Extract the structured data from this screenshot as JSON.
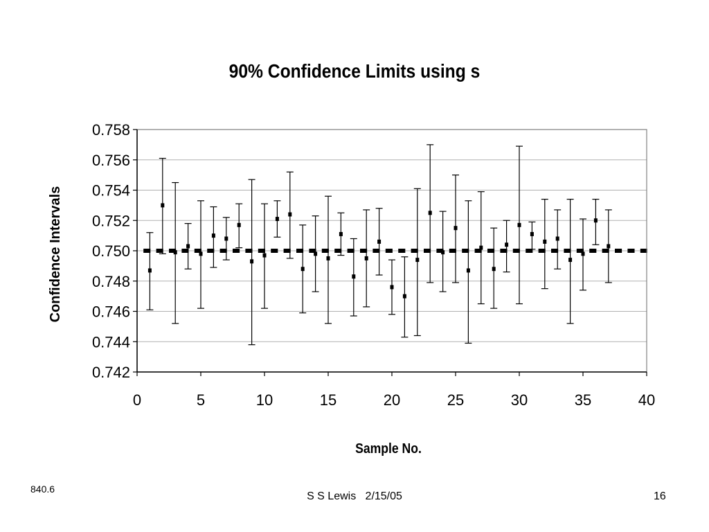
{
  "chart_data": {
    "type": "scatter",
    "title": "90% Confidence Limits using s",
    "xlabel": "Sample No.",
    "ylabel": "Confidence Intervals",
    "xlim": [
      0,
      40
    ],
    "ylim": [
      0.742,
      0.758
    ],
    "x_ticks": [
      0,
      5,
      10,
      15,
      20,
      25,
      30,
      35,
      40
    ],
    "y_ticks": [
      0.742,
      0.744,
      0.746,
      0.748,
      0.75,
      0.752,
      0.754,
      0.756,
      0.758
    ],
    "y_tick_labels": [
      "0.742",
      "0.744",
      "0.746",
      "0.748",
      "0.750",
      "0.752",
      "0.754",
      "0.756",
      "0.758"
    ],
    "grid": true,
    "reference_line": 0.75,
    "series": [
      {
        "x": [
          1,
          2,
          3,
          4,
          5,
          6,
          7,
          8,
          9,
          10,
          11,
          12,
          13,
          14,
          15,
          16,
          17,
          18,
          19,
          20,
          21,
          22,
          23,
          24,
          25,
          26,
          27,
          28,
          29,
          30,
          31,
          32,
          33,
          34,
          35,
          36,
          37
        ],
        "values": [
          0.7487,
          0.753,
          0.7499,
          0.7503,
          0.7498,
          0.751,
          0.7508,
          0.7517,
          0.7493,
          0.7497,
          0.7521,
          0.7524,
          0.7488,
          0.7498,
          0.7495,
          0.7511,
          0.7483,
          0.7495,
          0.7506,
          0.7476,
          0.747,
          0.7494,
          0.7525,
          0.7499,
          0.7515,
          0.7487,
          0.7502,
          0.7488,
          0.7504,
          0.7517,
          0.7511,
          0.7506,
          0.7508,
          0.7494,
          0.7498,
          0.752,
          0.7503
        ],
        "lower": [
          0.7461,
          0.7498,
          0.7452,
          0.7488,
          0.7462,
          0.7489,
          0.7494,
          0.7502,
          0.7438,
          0.7462,
          0.7509,
          0.7495,
          0.7459,
          0.7473,
          0.7452,
          0.7497,
          0.7457,
          0.7463,
          0.7484,
          0.7458,
          0.7443,
          0.7444,
          0.7479,
          0.7473,
          0.7479,
          0.7439,
          0.7465,
          0.7462,
          0.7486,
          0.7465,
          0.7501,
          0.7475,
          0.7488,
          0.7452,
          0.7474,
          0.7504,
          0.7479
        ],
        "upper": [
          0.7512,
          0.7561,
          0.7545,
          0.7518,
          0.7533,
          0.7529,
          0.7522,
          0.7531,
          0.7547,
          0.7531,
          0.7533,
          0.7552,
          0.7517,
          0.7523,
          0.7536,
          0.7525,
          0.7508,
          0.7527,
          0.7528,
          0.7494,
          0.7496,
          0.7541,
          0.757,
          0.7526,
          0.755,
          0.7533,
          0.7539,
          0.7515,
          0.752,
          0.7569,
          0.7519,
          0.7534,
          0.7527,
          0.7534,
          0.7521,
          0.7534,
          0.7527
        ]
      }
    ]
  },
  "footer": {
    "code": "840.6",
    "center": "S S Lewis   2/15/05",
    "page": "16"
  }
}
